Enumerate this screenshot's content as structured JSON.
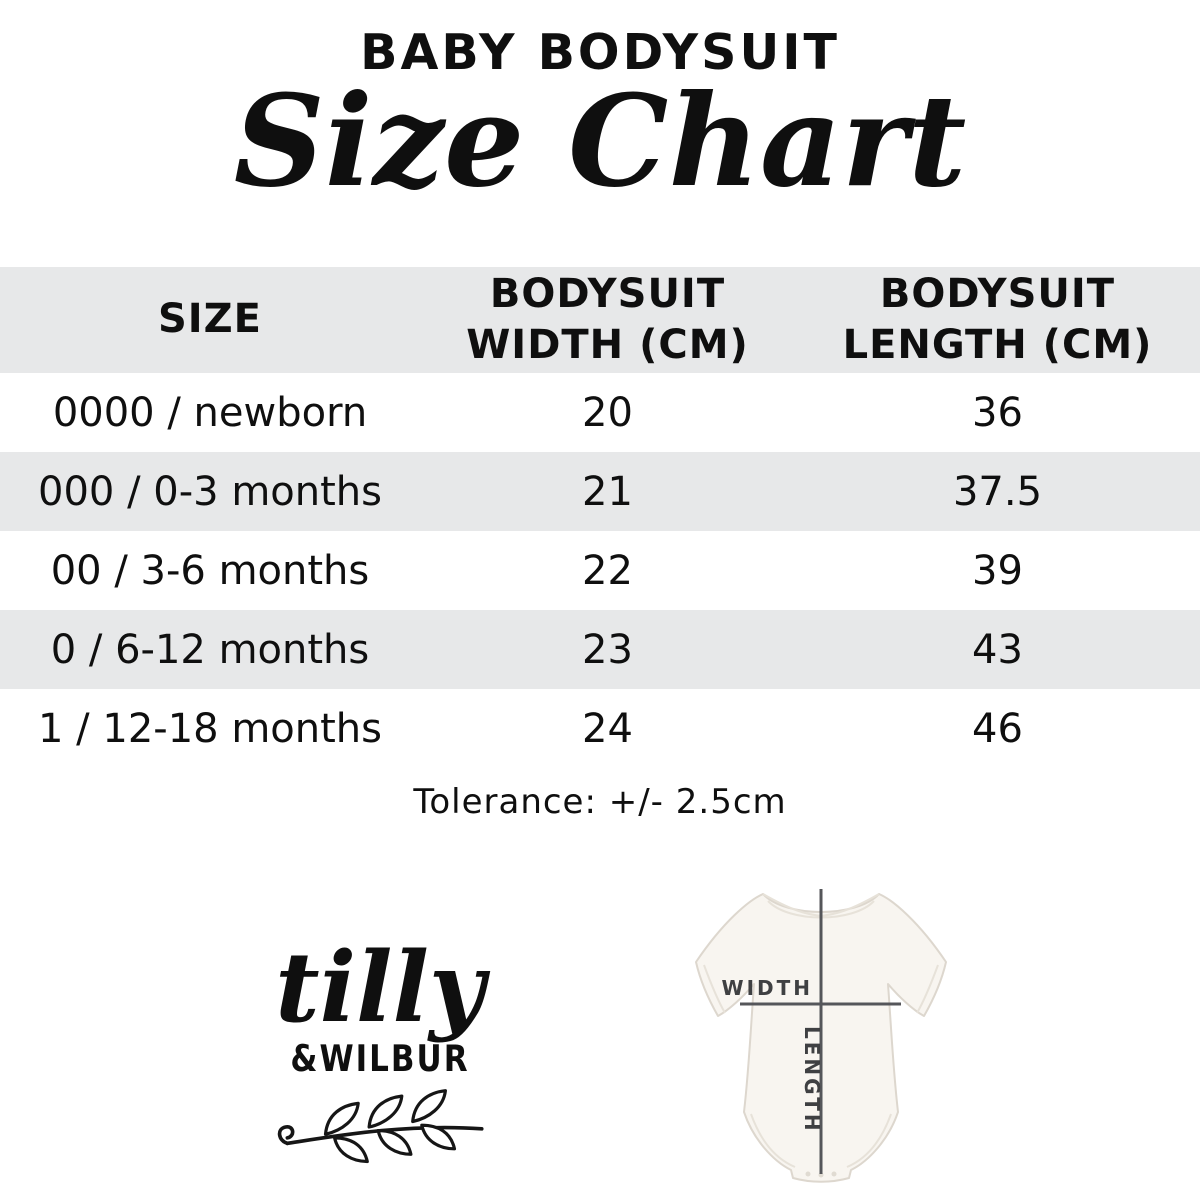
{
  "page": {
    "title": "BABY BODYSUIT",
    "subtitle": "Size Chart",
    "tolerance_note": "Tolerance: +/- 2.5cm"
  },
  "table": {
    "columns": [
      "SIZE",
      "BODYSUIT\nWIDTH (CM)",
      "BODYSUIT\nLENGTH (CM)"
    ],
    "rows": [
      {
        "size": "0000 / newborn",
        "width": "20",
        "length": "36"
      },
      {
        "size": "000 / 0-3 months",
        "width": "21",
        "length": "37.5"
      },
      {
        "size": "00 / 3-6 months",
        "width": "22",
        "length": "39"
      },
      {
        "size": "0 / 6-12 months",
        "width": "23",
        "length": "43"
      },
      {
        "size": "1 / 12-18 months",
        "width": "24",
        "length": "46"
      }
    ]
  },
  "brand": {
    "script_name": "tilly",
    "caps_name": "&WILBUR",
    "branch_icon": "laurel-branch-icon"
  },
  "diagram": {
    "width_label": "WIDTH",
    "length_label": "LENGTH"
  },
  "colors": {
    "row_alt": "#e7e8e9",
    "ink": "#0f0f0f",
    "diagram_line": "#55565a",
    "diagram_text": "#3f4042",
    "suit_fill": "#f8f5f0",
    "suit_stroke": "#ddd7ce"
  },
  "chart_data": {
    "type": "table",
    "title": "BABY BODYSUIT Size Chart",
    "columns": [
      "SIZE",
      "BODYSUIT WIDTH (CM)",
      "BODYSUIT LENGTH (CM)"
    ],
    "rows": [
      [
        "0000 / newborn",
        20,
        36
      ],
      [
        "000 / 0-3 months",
        21,
        37.5
      ],
      [
        "00 / 3-6 months",
        22,
        39
      ],
      [
        "0 / 6-12 months",
        23,
        43
      ],
      [
        "1 / 12-18 months",
        24,
        46
      ]
    ],
    "notes": "Tolerance: +/- 2.5cm",
    "layout_hints": {
      "header_background": "#e7e8e9",
      "striped_rows": true,
      "grid": false
    }
  }
}
